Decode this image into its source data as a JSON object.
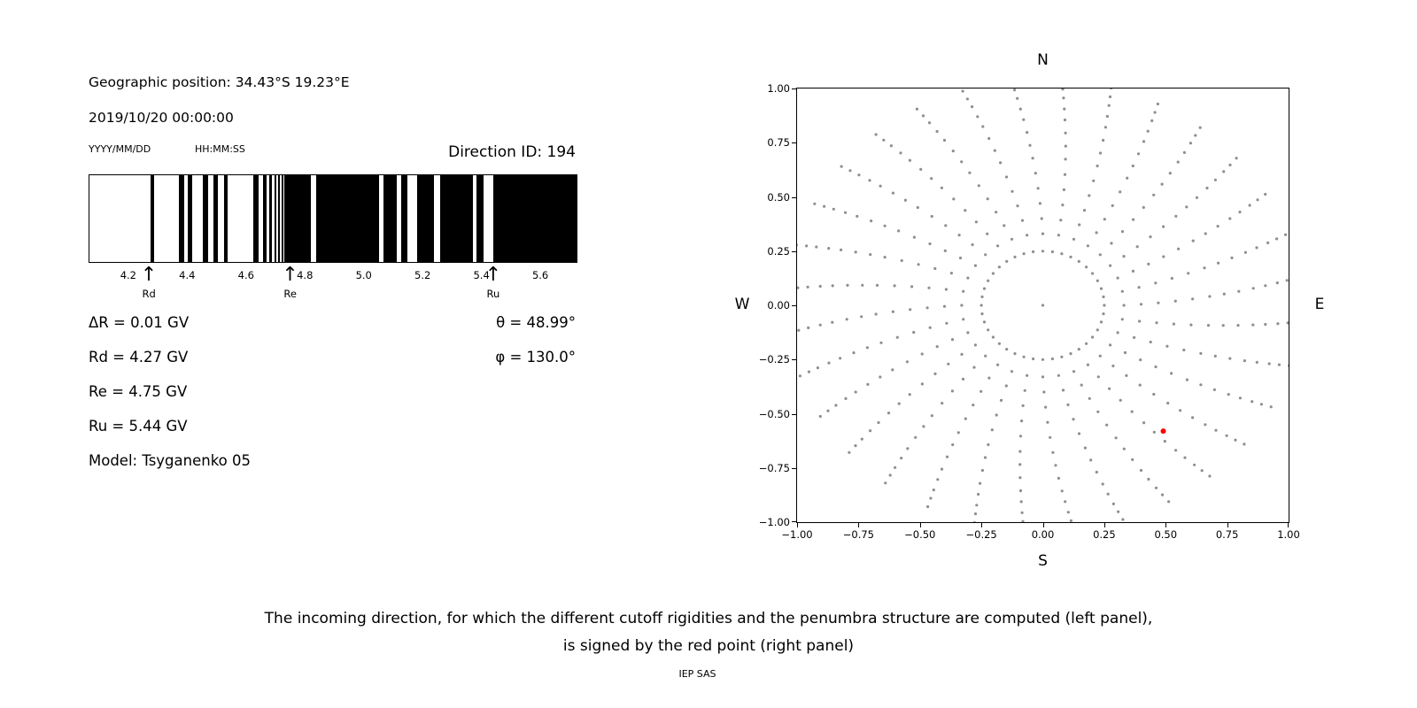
{
  "left_panel": {
    "geo_position": "Geographic position: 34.43°S 19.23°E",
    "datetime": "2019/10/20 00:00:00",
    "date_format_hint": "YYYY/MM/DD",
    "time_format_hint": "HH:MM:SS",
    "direction_id": "Direction ID: 194",
    "values_left": [
      "ΔR = 0.01 GV",
      "Rd = 4.27 GV",
      "Re = 4.75 GV",
      "Ru = 5.44 GV",
      "Model: Tsyganenko 05"
    ],
    "values_right": [
      "θ = 48.99°",
      "φ = 130.0°"
    ]
  },
  "right_panel": {
    "compass": {
      "top": "N",
      "bottom": "S",
      "left": "W",
      "right": "E"
    }
  },
  "caption": {
    "line1": "The incoming direction, for which the different cutoff rigidities and the penumbra structure are computed (left panel),",
    "line2": "is signed by the red point (right panel)"
  },
  "credit": "IEP SAS",
  "chart_data": [
    {
      "type": "bar",
      "subtype": "penumbra-barcode",
      "description": "Cosmic ray penumbra structure between lower (Rd), effective (Re) and upper (Ru) cutoff rigidities; black bands on white background",
      "xlim": [
        4.065,
        5.72
      ],
      "xticks": [
        4.2,
        4.4,
        4.6,
        4.8,
        5.0,
        5.2,
        5.4,
        5.6
      ],
      "bar_color": "#000000",
      "black_segments_gv": [
        [
          4.272,
          4.284
        ],
        [
          4.368,
          4.386
        ],
        [
          4.398,
          4.414
        ],
        [
          4.45,
          4.468
        ],
        [
          4.486,
          4.501
        ],
        [
          4.522,
          4.534
        ],
        [
          4.621,
          4.639
        ],
        [
          4.654,
          4.666
        ],
        [
          4.675,
          4.684
        ],
        [
          4.693,
          4.699
        ],
        [
          4.705,
          4.711
        ],
        [
          4.717,
          4.723
        ],
        [
          4.727,
          4.816
        ],
        [
          4.834,
          5.048
        ],
        [
          5.063,
          5.108
        ],
        [
          5.123,
          5.144
        ],
        [
          5.177,
          5.237
        ],
        [
          5.258,
          5.367
        ],
        [
          5.379,
          5.403
        ],
        [
          5.436,
          5.72
        ]
      ],
      "markers": [
        {
          "label": "Rd",
          "x": 4.27
        },
        {
          "label": "Re",
          "x": 4.75
        },
        {
          "label": "Ru",
          "x": 5.44
        }
      ]
    },
    {
      "type": "scatter",
      "description": "Sky map of incoming directions (gray dots: radial spokes of zenith/azimuth grid plus inner ring); selected direction shown as red point",
      "xlim": [
        -1.0,
        1.0
      ],
      "ylim": [
        -1.0,
        1.0
      ],
      "xticks": [
        -1.0,
        -0.75,
        -0.5,
        -0.25,
        0.0,
        0.25,
        0.5,
        0.75,
        1.0
      ],
      "yticks": [
        -1.0,
        -0.75,
        -0.5,
        -0.25,
        0.0,
        0.25,
        0.5,
        0.75,
        1.0
      ],
      "dot_color": "#8f8f8f",
      "red_point": {
        "x": 0.49,
        "y": -0.58,
        "color": "#ff0000"
      },
      "dot_pattern": {
        "type": "radial-spokes",
        "num_spokes": 32,
        "spoke_radii": [
          0.33,
          0.4,
          0.47,
          0.54,
          0.61,
          0.68,
          0.74,
          0.8,
          0.86,
          0.91,
          0.96,
          1.0,
          1.04
        ],
        "curvature_deg": -7,
        "inner_ring": {
          "radius": 0.25,
          "num_dots": 40
        },
        "center_dot": true
      }
    }
  ]
}
